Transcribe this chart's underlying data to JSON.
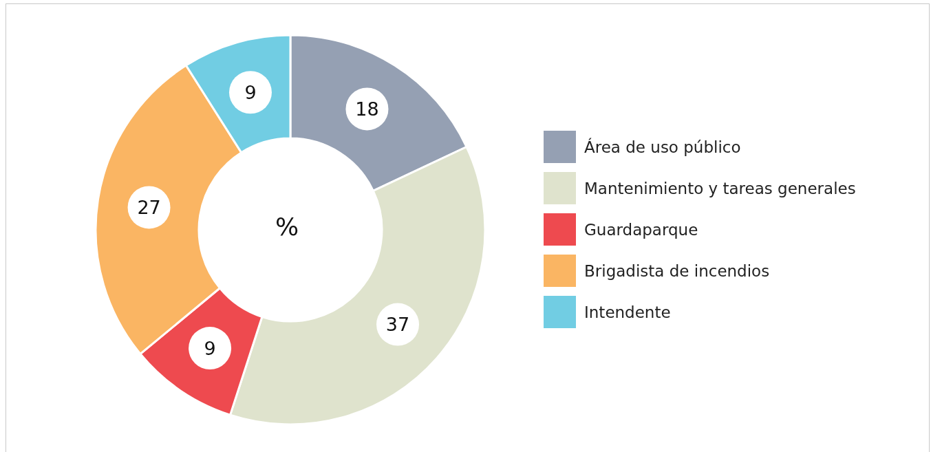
{
  "chart_data": {
    "type": "donut",
    "title": "%",
    "categories": [
      "Área de uso público",
      "Mantenimiento y tareas generales",
      "Guardaparque",
      "Brigadista de incendios",
      "Intendente"
    ],
    "values": [
      18,
      37,
      9,
      27,
      9
    ],
    "colors": [
      "#95a0b3",
      "#dfe3cd",
      "#ee4a4f",
      "#fab563",
      "#71cde3"
    ],
    "data_labels": true,
    "legend": "right"
  }
}
